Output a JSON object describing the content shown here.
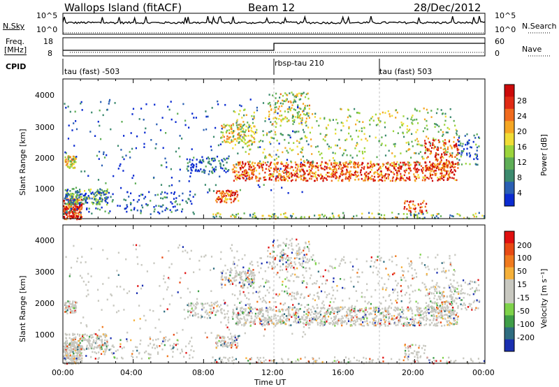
{
  "header": {
    "station": "Wallops Island (fitACF)",
    "beam": "Beam 12",
    "date": "28/Dec/2012"
  },
  "summary": {
    "nsky_label": "N.Sky",
    "nsearch_label": "N.Search",
    "freq_label_line1": "Freq.",
    "freq_label_line2": "[MHz]",
    "nave_label": "Nave",
    "cpid_label": "CPID",
    "nsky_ticks": [
      "10^5",
      "10^0"
    ],
    "nsearch_ticks": [
      "10^5",
      "10^0"
    ],
    "freq_ticks": [
      "18",
      "8"
    ],
    "nave_ticks": [
      "60",
      "0"
    ],
    "cpid_segments": [
      {
        "label": "tau (fast) -503",
        "start_hour": 0
      },
      {
        "label": "rbsp-tau 210",
        "start_hour": 12
      },
      {
        "label": "tau (fast) 503",
        "start_hour": 18
      }
    ]
  },
  "chart_data": [
    {
      "type": "heatmap",
      "name": "power",
      "ylabel": "Slant Range [km]",
      "yticks": [
        "1000",
        "2000",
        "3000",
        "4000"
      ],
      "ylim": [
        180,
        4600
      ],
      "xlim_hours": [
        0,
        24
      ],
      "colorbar_label": "Power [dB]",
      "colorbar_ticks": [
        "4",
        "8",
        "12",
        "16",
        "20",
        "24",
        "28"
      ],
      "colorbar_colors": [
        "#0b2bd1",
        "#2a5fb3",
        "#3c8a6e",
        "#5fae57",
        "#9cd43c",
        "#f0dc36",
        "#f5a623",
        "#f06b1e",
        "#e02a14",
        "#cc0a0a"
      ]
    },
    {
      "type": "heatmap",
      "name": "velocity",
      "ylabel": "Slant Range [km]",
      "yticks": [
        "1000",
        "2000",
        "3000",
        "4000"
      ],
      "ylim": [
        180,
        4600
      ],
      "xlim_hours": [
        0,
        24
      ],
      "colorbar_label": "Velocity [m s⁻¹]",
      "colorbar_ticks": [
        "200",
        "100",
        "50",
        "15",
        "-15",
        "-50",
        "-100",
        "-200"
      ],
      "colorbar_colors": [
        "#1a2fb0",
        "#2f6d80",
        "#3f9e48",
        "#7ed24a",
        "#c8c8c0",
        "#c8c8c0",
        "#f5b03a",
        "#f07a1e",
        "#e84a14",
        "#e01010"
      ]
    }
  ],
  "xaxis": {
    "label": "Time UT",
    "ticks": [
      "00:00",
      "04:00",
      "08:00",
      "12:00",
      "16:00",
      "20:00",
      "00:00"
    ]
  }
}
